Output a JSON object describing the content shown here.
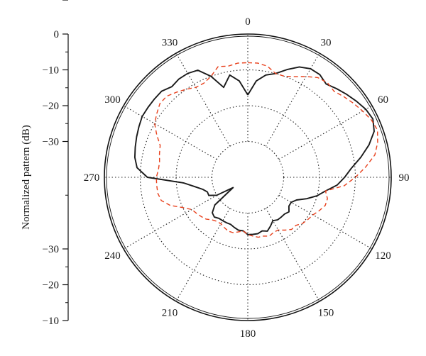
{
  "chart_data": {
    "type": "polar-line",
    "ylabel": "Normalized pattern (dB)",
    "radial_ticks": [
      "0",
      "−10",
      "−20",
      "−30",
      "−30",
      "−20",
      "−10",
      "0"
    ],
    "radial_range_db": [
      -40,
      0
    ],
    "angular_ticks": [
      "0",
      "30",
      "60",
      "90",
      "120",
      "150",
      "180",
      "210",
      "240",
      "270",
      "300",
      "330"
    ],
    "angular_direction": "clockwise",
    "zero_location": "top",
    "grid": true,
    "series": [
      {
        "color": "#1a1a1a",
        "style": "solid",
        "angles": [
          0,
          5,
          10,
          15,
          20,
          25,
          30,
          35,
          40,
          45,
          50,
          55,
          60,
          65,
          70,
          75,
          80,
          85,
          90,
          95,
          100,
          105,
          110,
          115,
          120,
          125,
          130,
          135,
          140,
          145,
          150,
          155,
          160,
          165,
          170,
          175,
          180,
          185,
          190,
          195,
          200,
          205,
          210,
          215,
          220,
          225,
          230,
          235,
          240,
          245,
          250,
          255,
          260,
          265,
          270,
          275,
          280,
          285,
          290,
          295,
          300,
          305,
          310,
          315,
          320,
          325,
          330,
          335,
          340,
          345,
          350,
          355,
          360
        ],
        "values": [
          -17,
          -13,
          -11,
          -10,
          -8,
          -6,
          -5,
          -5,
          -6,
          -5,
          -4,
          -3,
          -2,
          -1.5,
          -2.5,
          -5,
          -8,
          -11,
          -13,
          -15,
          -18,
          -20,
          -22.5,
          -25,
          -26,
          -26,
          -25,
          -25.5,
          -25.5,
          -25.5,
          -26,
          -25,
          -24,
          -24.5,
          -24,
          -24,
          -24,
          -25,
          -25,
          -25.5,
          -26,
          -26,
          -26,
          -26,
          -25.5,
          -26,
          -28,
          -35,
          -30,
          -28,
          -28,
          -27,
          -25,
          -22,
          -12,
          -9,
          -8,
          -7.5,
          -7,
          -6.5,
          -6,
          -6,
          -6,
          -6,
          -7,
          -6.5,
          -6.5,
          -7,
          -10,
          -14,
          -11,
          -13,
          -17
        ]
      },
      {
        "color": "#e8401c",
        "style": "dashed",
        "angles": [
          0,
          5,
          10,
          15,
          20,
          25,
          30,
          35,
          40,
          45,
          50,
          55,
          60,
          65,
          70,
          75,
          80,
          85,
          90,
          95,
          100,
          105,
          110,
          115,
          120,
          125,
          130,
          135,
          140,
          145,
          150,
          155,
          160,
          165,
          170,
          175,
          180,
          185,
          190,
          195,
          200,
          205,
          210,
          215,
          220,
          225,
          230,
          235,
          240,
          245,
          250,
          255,
          260,
          265,
          270,
          275,
          280,
          285,
          290,
          295,
          300,
          305,
          310,
          315,
          320,
          325,
          330,
          335,
          340,
          345,
          350,
          355,
          360
        ],
        "values": [
          -8,
          -8,
          -8.5,
          -10,
          -10,
          -9,
          -7.5,
          -6,
          -5.5,
          -6,
          -5,
          -4,
          -3,
          -2,
          -1.5,
          -2.5,
          -4,
          -7,
          -10,
          -13,
          -18,
          -17,
          -17,
          -18,
          -19,
          -19.5,
          -20,
          -21,
          -21,
          -22,
          -23,
          -23,
          -22.5,
          -23,
          -23,
          -23.5,
          -24,
          -25,
          -24.5,
          -24,
          -24,
          -24.5,
          -25,
          -25,
          -24.5,
          -23.5,
          -23,
          -22.5,
          -22,
          -20,
          -17,
          -15,
          -14.5,
          -14.5,
          -14.5,
          -15,
          -15,
          -14.5,
          -14,
          -12,
          -10,
          -9,
          -8,
          -8,
          -9,
          -10,
          -11,
          -11,
          -10,
          -8,
          -8.5,
          -8,
          -8
        ]
      }
    ]
  }
}
